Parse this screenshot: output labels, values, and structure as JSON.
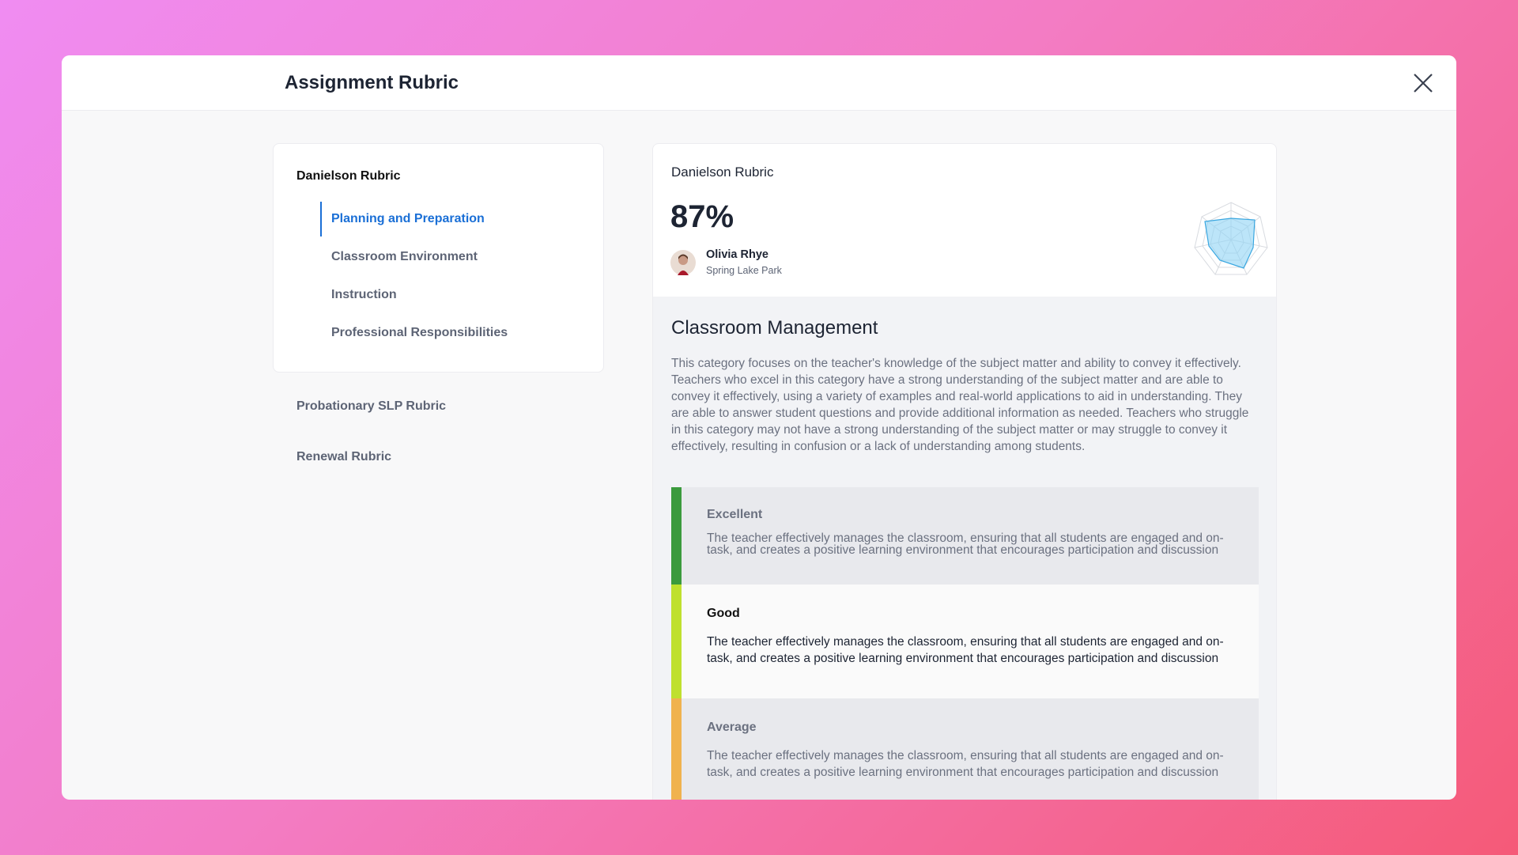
{
  "header": {
    "title": "Assignment Rubric"
  },
  "sidebar": {
    "active_rubric": {
      "title": "Danielson Rubric",
      "items": [
        "Planning and Preparation",
        "Classroom Environment",
        "Instruction",
        "Professional Responsibilities"
      ]
    },
    "other_rubrics": [
      "Probationary SLP Rubric",
      "Renewal Rubric"
    ]
  },
  "summary": {
    "rubric": "Danielson Rubric",
    "score": "87%",
    "person": {
      "name": "Olivia Rhye",
      "location": "Spring Lake Park"
    }
  },
  "category": {
    "title": "Classroom Management",
    "description": "This category focuses on the teacher's knowledge of the subject matter and ability to convey it effectively. Teachers who excel in this category have a strong understanding of the subject matter and are able to convey it effectively, using a variety of examples and real-world applications to aid in understanding. They are able to answer student questions and provide additional information as needed. Teachers who struggle in this category may not have a strong understanding of the subject matter or may struggle to convey it effectively, resulting in confusion or a lack of understanding among students.",
    "levels": [
      {
        "name": "Excellent",
        "text": "The teacher effectively manages the classroom, ensuring that all students are engaged and on-task, and creates a positive learning environment that encourages participation and discussion"
      },
      {
        "name": "Good",
        "text": "The teacher effectively manages the classroom, ensuring that all students are engaged and on-task, and creates a positive learning environment that encourages participation and discussion"
      },
      {
        "name": "Average",
        "text": "The teacher effectively manages the classroom, ensuring that all students are engaged and on-task, and creates a positive learning environment that encourages participation and discussion"
      }
    ]
  }
}
